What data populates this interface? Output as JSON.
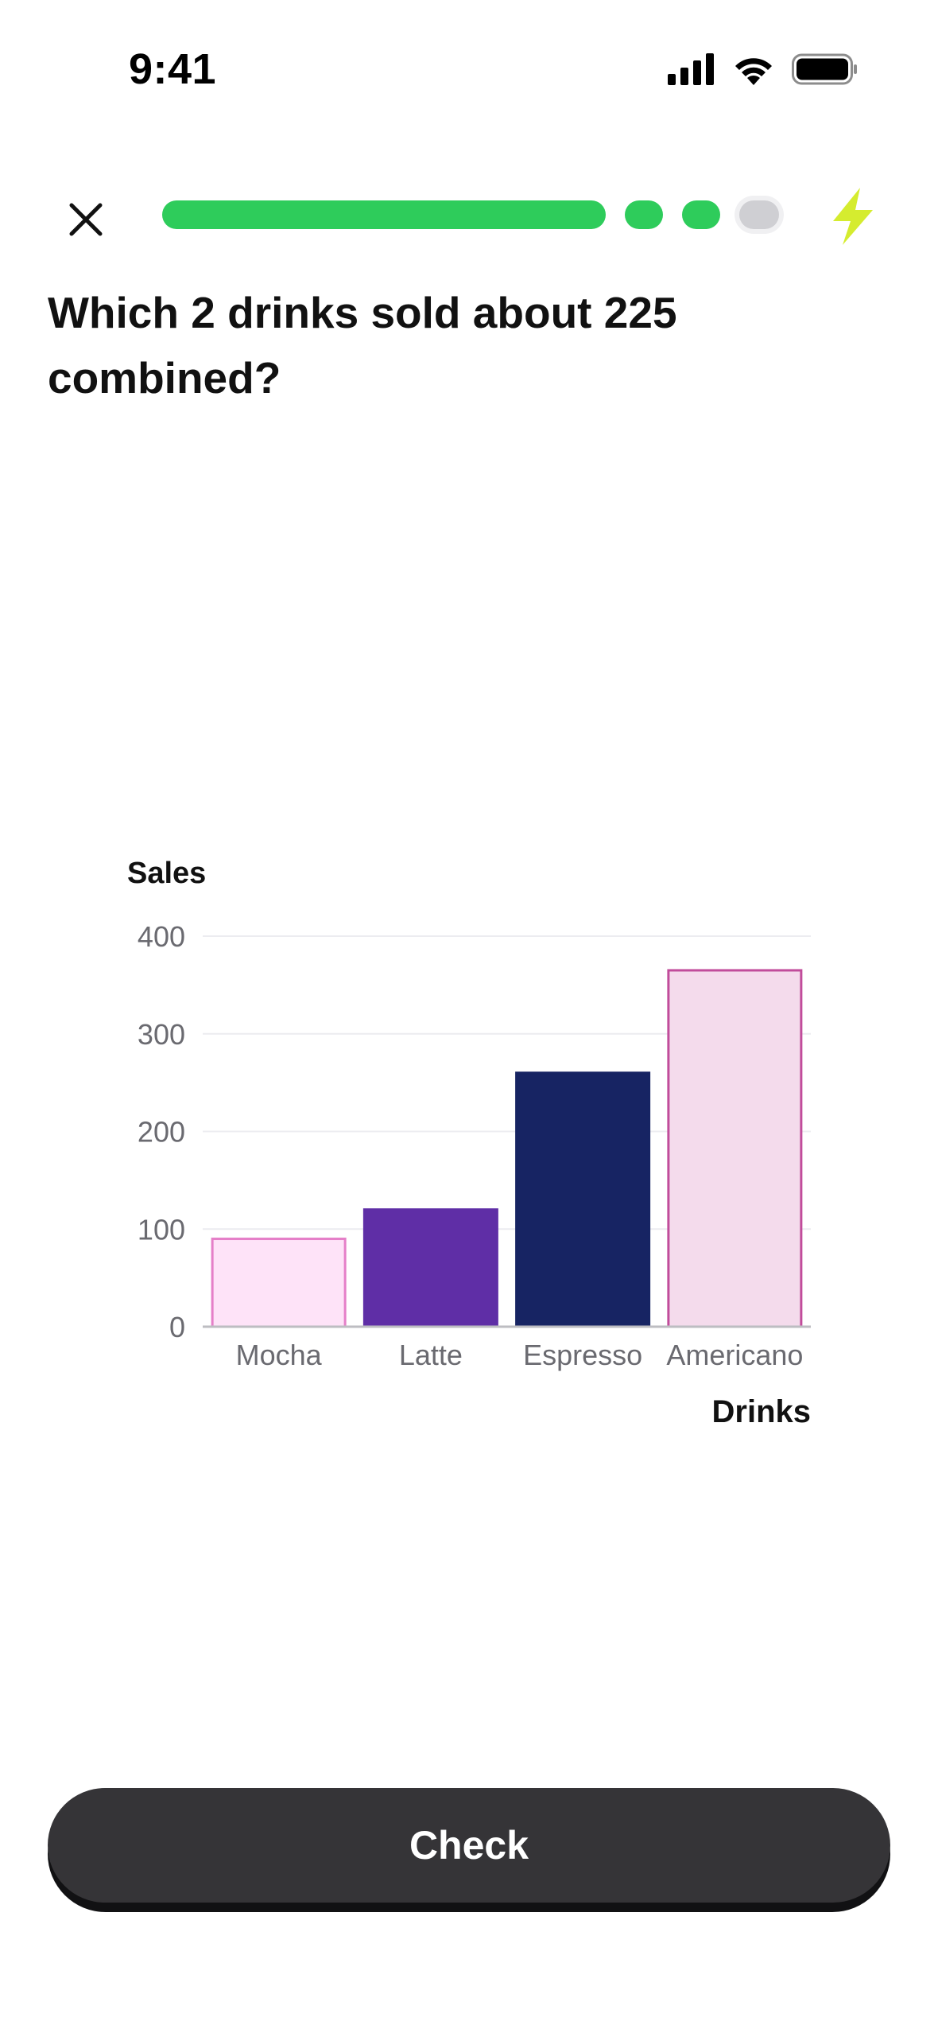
{
  "status_bar": {
    "time": "9:41",
    "icons": [
      "cellular-signal-icon",
      "wifi-icon",
      "battery-icon"
    ]
  },
  "top_bar": {
    "close_icon": "close-icon",
    "progress": {
      "segments": 4,
      "completed": 3,
      "current_index": 3
    },
    "streak_icon": "lightning-bolt-icon"
  },
  "question": {
    "text": "Which 2 drinks sold about 225 combined?"
  },
  "chart_data": {
    "type": "bar",
    "categories": [
      "Mocha",
      "Latte",
      "Espresso",
      "Americano"
    ],
    "values": [
      90,
      120,
      260,
      365
    ],
    "title": "",
    "xlabel": "Drinks",
    "ylabel": "Sales",
    "ylim": [
      0,
      400
    ],
    "yticks": [
      "0",
      "100",
      "200",
      "300",
      "400"
    ],
    "grid": true,
    "bar_styles": [
      {
        "fill": "#fee3f8",
        "stroke": "#e57fc8"
      },
      {
        "fill": "#5f2ea6",
        "stroke": "#5f2ea6"
      },
      {
        "fill": "#172463",
        "stroke": "#172463"
      },
      {
        "fill": "#f4dbec",
        "stroke": "#c14c9b"
      }
    ]
  },
  "colors": {
    "progress_done": "#2ecc5b",
    "progress_pending": "#cfcfd3",
    "streak": "#d5ec2f",
    "button": "#353437"
  },
  "footer": {
    "check_label": "Check"
  }
}
